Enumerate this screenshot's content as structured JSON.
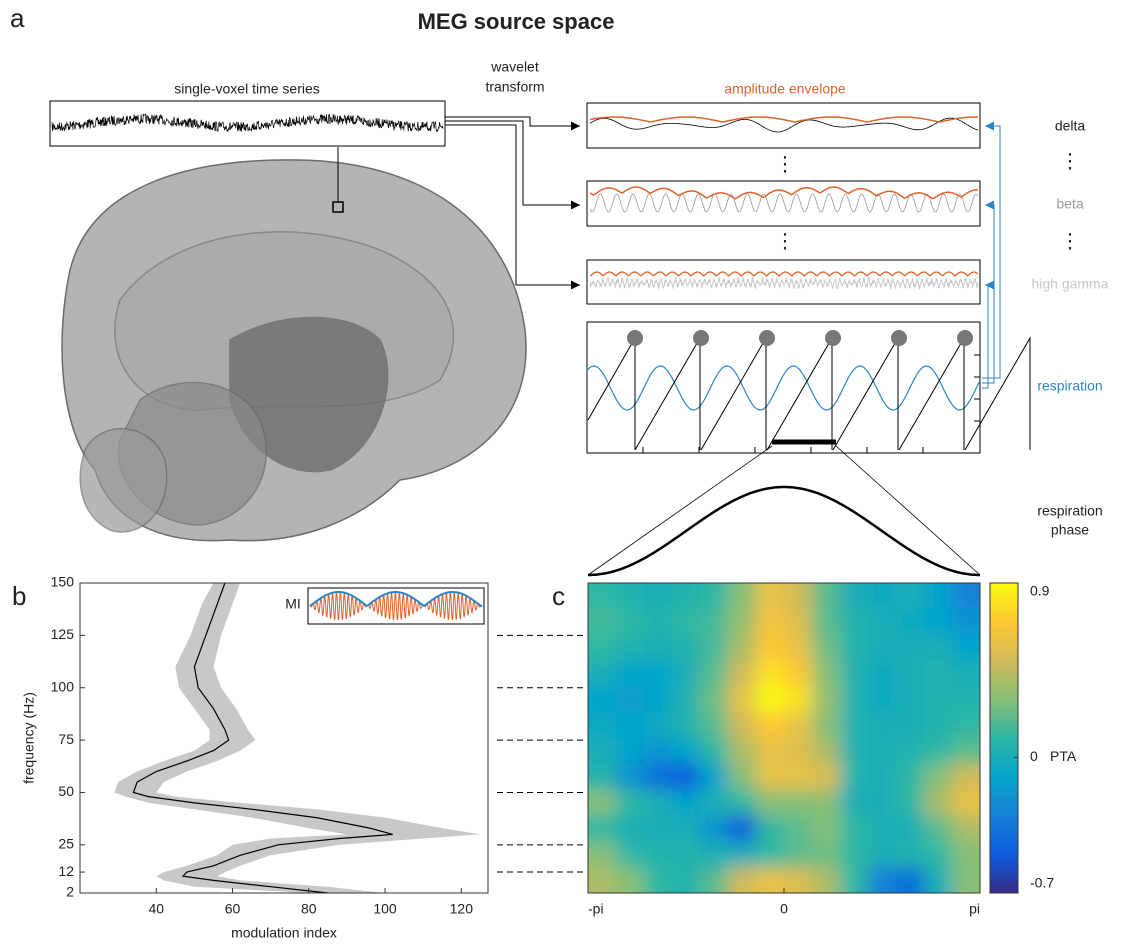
{
  "figure": {
    "panel_a": "a",
    "panel_b": "b",
    "panel_c": "c",
    "title": "MEG source space",
    "single_voxel": "single-voxel time series",
    "wavelet": [
      "wavelet",
      "transform"
    ],
    "amplitude_envelope": "amplitude envelope",
    "delta": "delta",
    "dots": "⋮",
    "beta": "beta",
    "high_gamma": "high gamma",
    "respiration": "respiration",
    "respiration_phase": [
      "respiration",
      "phase"
    ]
  },
  "chart_data": [
    {
      "type": "line",
      "xlabel": "modulation index",
      "ylabel": "frequency (Hz)",
      "inset_label": "MI",
      "y": [
        2,
        5,
        8,
        10,
        12,
        15,
        20,
        25,
        28,
        30,
        33,
        38,
        42,
        45,
        48,
        50,
        55,
        60,
        65,
        70,
        75,
        80,
        90,
        100,
        110,
        125,
        140,
        150
      ],
      "x": [
        85,
        70,
        55,
        47,
        48,
        55,
        62,
        72,
        88,
        102,
        96,
        82,
        65,
        50,
        38,
        34,
        35,
        40,
        48,
        55,
        59,
        58,
        55,
        51,
        50,
        53,
        56,
        58
      ],
      "x_lower": [
        80,
        50,
        42,
        40,
        42,
        48,
        56,
        60,
        70,
        90,
        80,
        65,
        50,
        38,
        32,
        29,
        30,
        35,
        42,
        50,
        54,
        54,
        50,
        46,
        45,
        49,
        52,
        55
      ],
      "x_upper": [
        100,
        85,
        62,
        56,
        58,
        62,
        70,
        88,
        110,
        125,
        115,
        100,
        82,
        62,
        45,
        40,
        42,
        48,
        56,
        62,
        66,
        64,
        61,
        57,
        55,
        57,
        60,
        62
      ],
      "color": "#000000",
      "band_color": "#c8c8c8",
      "xlim": [
        20,
        127
      ],
      "xticks": [
        40,
        60,
        80,
        100,
        120
      ],
      "ylim": [
        2,
        150
      ],
      "yticks": [
        2,
        12,
        25,
        50,
        75,
        100,
        125,
        150
      ]
    },
    {
      "type": "heatmap",
      "colorbar_label": "PTA",
      "xlim": [
        -3.14159,
        3.14159
      ],
      "xticks": [
        {
          "value": -3.14159,
          "label": "-pi"
        },
        0,
        {
          "value": 3.14159,
          "label": "pi"
        }
      ],
      "ylim": [
        2,
        150
      ],
      "clim": [
        -0.7,
        0.9
      ],
      "cticks": [
        -0.7,
        0,
        0.9
      ],
      "values": [
        [
          0.1,
          0.05,
          0,
          0.05,
          0.1,
          0.3,
          0.6,
          0.5,
          0.2,
          0.0,
          -0.05,
          0.0,
          -0.1,
          -0.3
        ],
        [
          0.15,
          0.1,
          0.05,
          0.1,
          0.15,
          0.35,
          0.65,
          0.55,
          0.2,
          0.05,
          0,
          -0.05,
          -0.1,
          -0.2
        ],
        [
          0.1,
          0.05,
          0,
          0.05,
          0.15,
          0.4,
          0.7,
          0.6,
          0.25,
          0.05,
          0,
          0,
          0,
          -0.1
        ],
        [
          0,
          -0.1,
          -0.1,
          0,
          0.2,
          0.5,
          0.8,
          0.7,
          0.3,
          0.05,
          -0.05,
          0,
          0.05,
          0
        ],
        [
          -0.1,
          -0.15,
          -0.1,
          0.05,
          0.25,
          0.6,
          0.9,
          0.8,
          0.35,
          0.05,
          -0.05,
          0,
          0.05,
          0.05
        ],
        [
          -0.05,
          -0.1,
          -0.05,
          0.05,
          0.2,
          0.5,
          0.7,
          0.6,
          0.3,
          0.05,
          0,
          0,
          0.05,
          0.1
        ],
        [
          0,
          -0.1,
          -0.2,
          -0.1,
          0.1,
          0.4,
          0.6,
          0.55,
          0.4,
          0.05,
          0,
          0.05,
          0.1,
          0.2
        ],
        [
          0.05,
          -0.2,
          -0.4,
          -0.5,
          -0.1,
          0.3,
          0.6,
          0.6,
          0.55,
          0.05,
          0,
          0.1,
          0.3,
          0.5
        ],
        [
          0.3,
          0.1,
          0,
          -0.1,
          0,
          0.1,
          0.3,
          0.3,
          0.3,
          0,
          0,
          0.1,
          0.4,
          0.6
        ],
        [
          0.1,
          0,
          0,
          0,
          -0.2,
          -0.5,
          0.1,
          0.2,
          0.3,
          0.1,
          0,
          0,
          0.2,
          0.4
        ],
        [
          0.3,
          0.1,
          0.05,
          0.05,
          0,
          0,
          0.1,
          0.2,
          0.25,
          0.1,
          0,
          0.05,
          0.1,
          0.3
        ],
        [
          0.4,
          0.3,
          0.1,
          0.05,
          0.2,
          0.5,
          0.6,
          0.55,
          0.4,
          0.1,
          -0.3,
          -0.4,
          0,
          0.3
        ]
      ]
    }
  ]
}
